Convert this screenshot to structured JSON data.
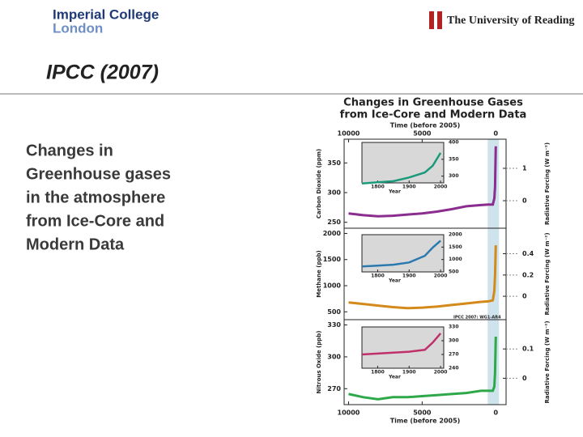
{
  "header": {
    "logo_left": [
      "Imperial College",
      "London"
    ],
    "logo_right": "The University of Reading"
  },
  "slide": {
    "title": "IPCC (2007)",
    "body": [
      "Changes in",
      "Greenhouse gases",
      "in the atmosphere",
      "from Ice-Core and",
      "Modern Data"
    ]
  },
  "figure": {
    "title": [
      "Changes in Greenhouse Gases",
      "from Ice-Core and Modern Data"
    ],
    "note": "IPCC 2007: WG1-AR4",
    "x_label": "Time (before 2005)",
    "xlim": [
      10300,
      -700
    ],
    "xticks": [
      10000,
      5000,
      0
    ],
    "panels": [
      {
        "ylabel": "Carbon Dioxide (ppm)",
        "y2label": "Radiative Forcing (W m⁻²)",
        "ylim": [
          240,
          390
        ],
        "yticks": [
          250,
          300,
          350
        ],
        "y2lim": [
          -0.85,
          1.9
        ],
        "y2ticks": [
          0,
          1
        ],
        "x": [
          10000,
          9000,
          8000,
          7000,
          6000,
          5000,
          4000,
          3000,
          2000,
          1000,
          500,
          200,
          100,
          50,
          0
        ],
        "values": [
          265,
          262,
          260,
          261,
          263,
          265,
          268,
          272,
          277,
          279,
          280,
          280,
          290,
          310,
          378
        ],
        "color": "#8a2d8f",
        "inset": {
          "xlabel": "Year",
          "xlim": [
            1750,
            2010
          ],
          "xticks": [
            1800,
            1900,
            2000
          ],
          "ylim": [
            280,
            400
          ],
          "yticks": [
            300,
            350,
            400
          ],
          "x": [
            1750,
            1800,
            1850,
            1900,
            1950,
            1975,
            2000
          ],
          "values": [
            278,
            282,
            285,
            296,
            311,
            331,
            369
          ],
          "color": "#1a9a7a"
        }
      },
      {
        "ylabel": "Methane (ppb)",
        "y2label": "Radiative Forcing (W m⁻²)",
        "ylim": [
          350,
          2100
        ],
        "yticks": [
          500,
          1000,
          1500,
          2000
        ],
        "y2lim": [
          -0.22,
          0.64
        ],
        "y2ticks": [
          0,
          0.2,
          0.4
        ],
        "x": [
          10000,
          9000,
          8000,
          7000,
          6000,
          5000,
          4000,
          3000,
          2000,
          1000,
          500,
          200,
          100,
          50,
          0
        ],
        "values": [
          680,
          650,
          620,
          590,
          570,
          580,
          600,
          630,
          660,
          690,
          700,
          720,
          900,
          1200,
          1774
        ],
        "color": "#d48a1a",
        "inset": {
          "xlabel": "Year",
          "xlim": [
            1750,
            2010
          ],
          "xticks": [
            1800,
            1900,
            2000
          ],
          "ylim": [
            500,
            2000
          ],
          "yticks": [
            500,
            1000,
            1500,
            2000
          ],
          "x": [
            1750,
            1800,
            1850,
            1900,
            1950,
            1975,
            2000
          ],
          "values": [
            720,
            750,
            790,
            880,
            1150,
            1480,
            1760
          ],
          "color": "#2a7ab0"
        }
      },
      {
        "ylabel": "Nitrous Oxide (ppb)",
        "y2label": "Radiative Forcing (W m⁻²)",
        "ylim": [
          255,
          335
        ],
        "yticks": [
          270,
          300,
          330
        ],
        "y2lim": [
          -0.09,
          0.2
        ],
        "y2ticks": [
          0,
          0.1
        ],
        "x": [
          10000,
          9000,
          8000,
          7000,
          6000,
          5000,
          4000,
          3000,
          2000,
          1000,
          500,
          200,
          100,
          50,
          0
        ],
        "values": [
          265,
          262,
          260,
          262,
          262,
          263,
          264,
          265,
          266,
          268,
          268,
          268,
          272,
          285,
          319
        ],
        "color": "#2fa84a",
        "inset": {
          "xlabel": "Year",
          "xlim": [
            1750,
            2010
          ],
          "xticks": [
            1800,
            1900,
            2000
          ],
          "ylim": [
            240,
            330
          ],
          "yticks": [
            240,
            270,
            300,
            330
          ],
          "x": [
            1750,
            1800,
            1850,
            1900,
            1950,
            1975,
            2000
          ],
          "values": [
            270,
            272,
            274,
            276,
            280,
            296,
            316
          ],
          "color": "#c0306a"
        }
      }
    ]
  }
}
